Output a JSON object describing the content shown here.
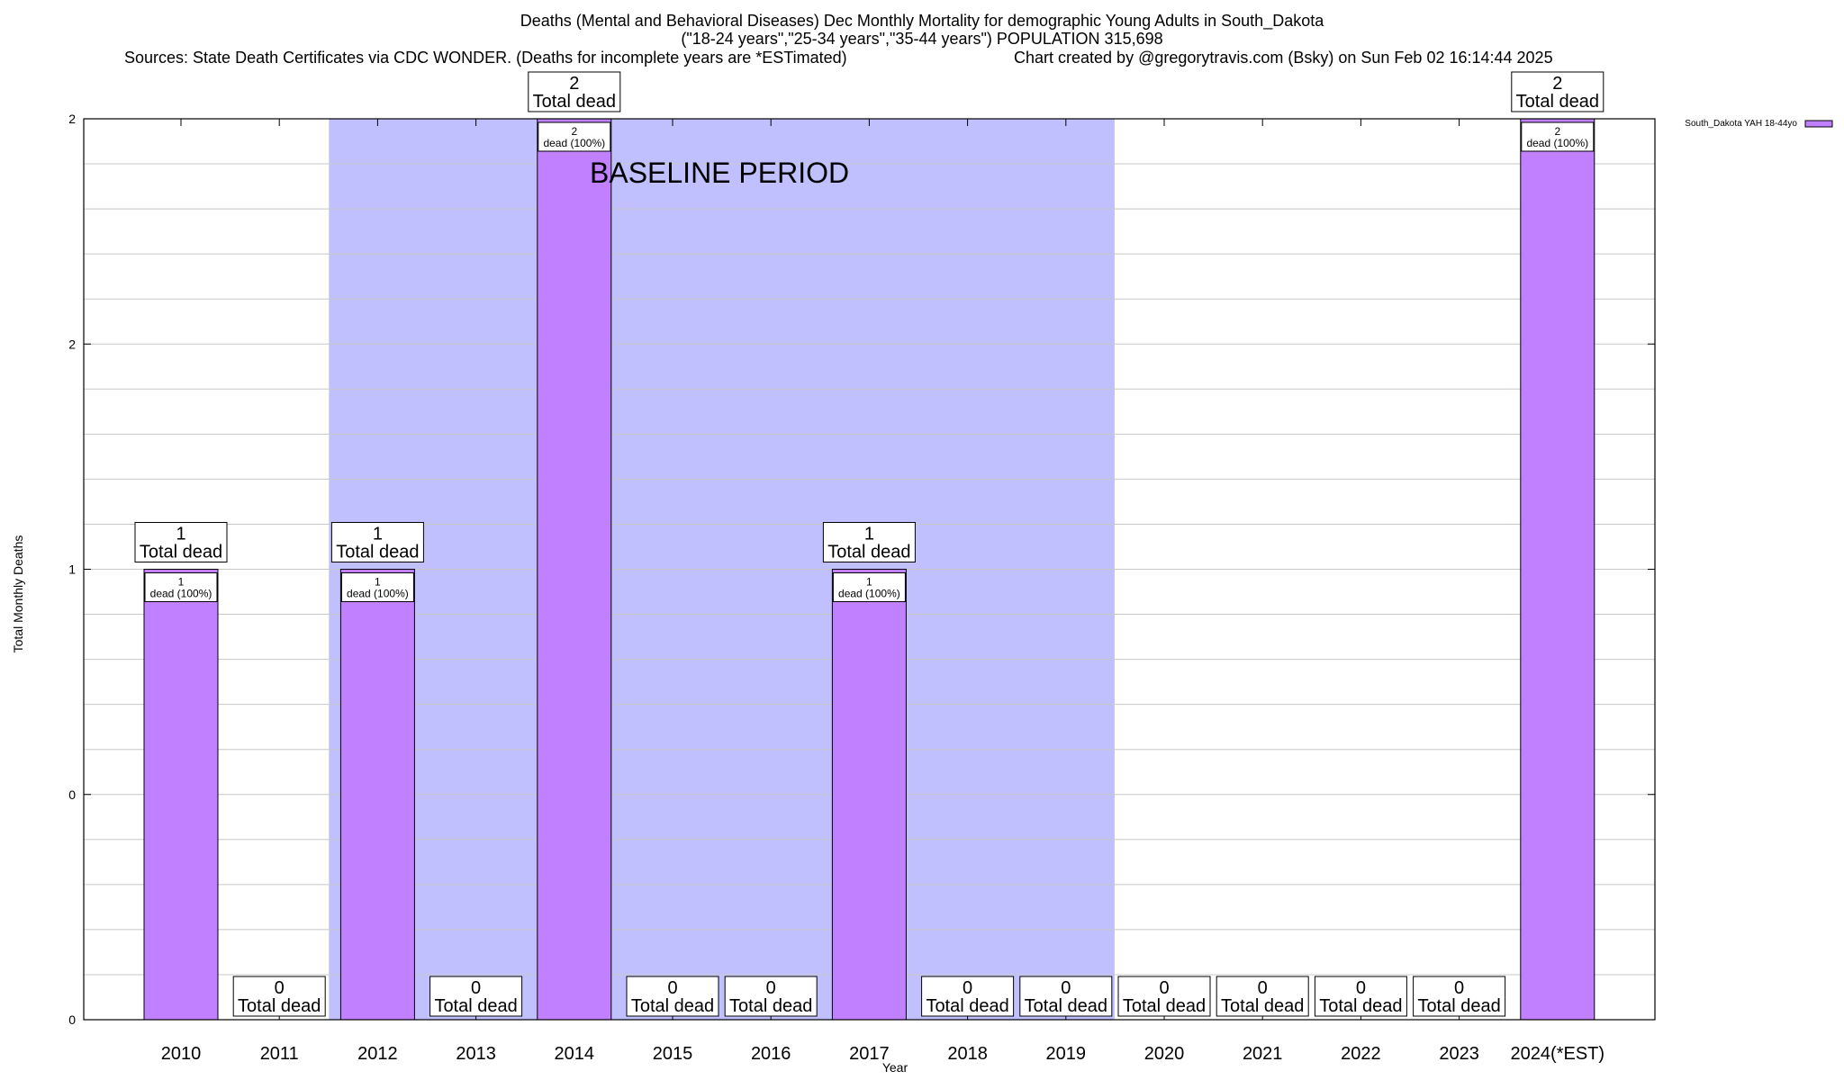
{
  "chart_data": {
    "type": "bar",
    "title": "Deaths (Mental and Behavioral Diseases) Dec Monthly Mortality for demographic Young Adults in South_Dakota",
    "subtitle": "(\"18-24 years\",\"25-34 years\",\"35-44 years\") POPULATION 315,698",
    "sources": "Sources: State Death Certificates via CDC WONDER. (Deaths for incomplete years are *ESTimated)",
    "credit": "Chart created by @gregorytravis.com (Bsky) on Sun Feb 02 16:14:44 2025",
    "xlabel": "Year",
    "ylabel": "Total Monthly Deaths",
    "categories": [
      "2010",
      "2011",
      "2012",
      "2013",
      "2014",
      "2015",
      "2016",
      "2017",
      "2018",
      "2019",
      "2020",
      "2021",
      "2022",
      "2023",
      "2024(*EST)"
    ],
    "series": [
      {
        "name": "South_Dakota YAH 18-44yo",
        "values": [
          1,
          0,
          1,
          0,
          2,
          0,
          0,
          1,
          0,
          0,
          0,
          0,
          0,
          0,
          2
        ],
        "color": "#c080ff"
      }
    ],
    "ylim": [
      0,
      2
    ],
    "yticks": [
      {
        "value": 0,
        "label": "0"
      },
      {
        "value": 0.5,
        "label": "0"
      },
      {
        "value": 1,
        "label": "1"
      },
      {
        "value": 1.5,
        "label": "2"
      },
      {
        "value": 2,
        "label": "2"
      }
    ],
    "total_label": "Total dead",
    "inner_label_suffix": "dead (100%)",
    "annotation": "BASELINE PERIOD",
    "baseline_span": [
      "2012",
      "2019"
    ],
    "baseline_color": "#c0c0ff",
    "grid": true,
    "legend_position": "top-right"
  }
}
